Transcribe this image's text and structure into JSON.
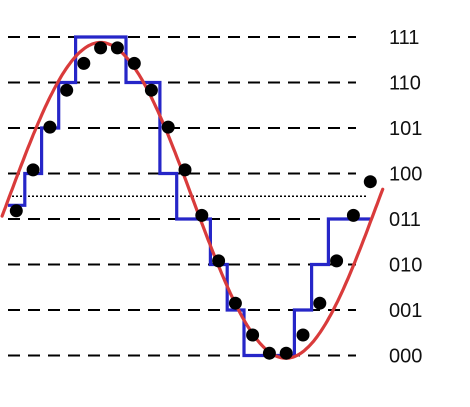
{
  "chart_data": {
    "type": "line",
    "levels": [
      "000",
      "001",
      "010",
      "011",
      "100",
      "101",
      "110",
      "111"
    ],
    "samples": [
      {
        "t": 0.28,
        "level": 3.18
      },
      {
        "t": 0.85,
        "level": 4.08
      },
      {
        "t": 1.42,
        "level": 5.02
      },
      {
        "t": 1.99,
        "level": 5.83
      },
      {
        "t": 2.57,
        "level": 6.42
      },
      {
        "t": 3.14,
        "level": 6.76
      },
      {
        "t": 3.71,
        "level": 6.76
      },
      {
        "t": 4.28,
        "level": 6.42
      },
      {
        "t": 4.86,
        "level": 5.83
      },
      {
        "t": 5.43,
        "level": 5.02
      },
      {
        "t": 6.0,
        "level": 4.08
      },
      {
        "t": 6.57,
        "level": 3.08
      },
      {
        "t": 7.14,
        "level": 2.08
      },
      {
        "t": 7.71,
        "level": 1.15
      },
      {
        "t": 8.29,
        "level": 0.45
      },
      {
        "t": 8.86,
        "level": 0.05
      },
      {
        "t": 9.43,
        "level": 0.05
      },
      {
        "t": 10.0,
        "level": 0.45
      },
      {
        "t": 10.57,
        "level": 1.15
      },
      {
        "t": 11.14,
        "level": 2.08
      },
      {
        "t": 11.71,
        "level": 3.08
      },
      {
        "t": 12.28,
        "level": 3.82
      }
    ],
    "quantized_steps": [
      {
        "t_start": 0.0,
        "t_end": 0.57,
        "level": 3.3
      },
      {
        "t_start": 0.57,
        "t_end": 1.14,
        "level": 4.0
      },
      {
        "t_start": 1.14,
        "t_end": 1.72,
        "level": 5.0
      },
      {
        "t_start": 1.72,
        "t_end": 2.29,
        "level": 6.0
      },
      {
        "t_start": 2.29,
        "t_end": 4.0,
        "level": 7.0
      },
      {
        "t_start": 4.0,
        "t_end": 5.15,
        "level": 6.0
      },
      {
        "t_start": 5.15,
        "t_end": 5.72,
        "level": 4.0
      },
      {
        "t_start": 5.72,
        "t_end": 6.86,
        "level": 3.0
      },
      {
        "t_start": 6.86,
        "t_end": 7.43,
        "level": 2.0
      },
      {
        "t_start": 7.43,
        "t_end": 8.0,
        "level": 1.0
      },
      {
        "t_start": 8.0,
        "t_end": 9.71,
        "level": 0.0
      },
      {
        "t_start": 9.71,
        "t_end": 10.29,
        "level": 1.0
      },
      {
        "t_start": 10.29,
        "t_end": 10.86,
        "level": 2.0
      },
      {
        "t_start": 10.86,
        "t_end": 12.28,
        "level": 3.0
      }
    ],
    "colors": {
      "sine": "#d93b3b",
      "quantized": "#2626c8",
      "samples": "#000000",
      "levels": "#000000"
    }
  }
}
